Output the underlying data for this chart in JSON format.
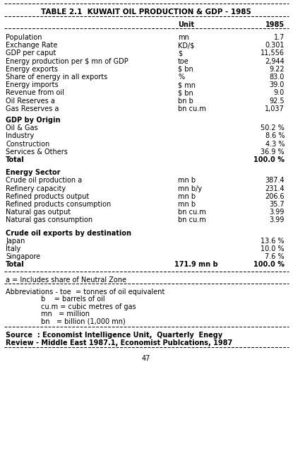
{
  "title": "TABLE 2.1  KUWAIT OIL PRODUCTION & GDP - 1985",
  "bg_color": "#ffffff",
  "text_color": "#000000",
  "page_number": "47",
  "data_rows": [
    [
      "Population",
      "mn",
      "1.7"
    ],
    [
      "Exchange Rate",
      "KD/$",
      "0.301"
    ],
    [
      "GDP per caput",
      "$",
      "11,556"
    ],
    [
      "Energy production per $ mn of GDP",
      "toe",
      "2,944"
    ],
    [
      "Energy exports",
      "$ bn",
      "9.22"
    ],
    [
      "Share of energy in all exports",
      "%",
      "83.0"
    ],
    [
      "Energy imports",
      "$ mn",
      "39.0"
    ],
    [
      "Revenue from oil",
      "$ bn",
      "9.0"
    ],
    [
      "Oil Reserves a",
      "bn b",
      "92.5"
    ],
    [
      "Gas Reserves a",
      "bn cu.m",
      "1,037"
    ]
  ],
  "gdp_heading": "GDP by Origin",
  "gdp_rows": [
    [
      "Oil & Gas",
      "",
      "50.2 %"
    ],
    [
      "Industry",
      "",
      "8.6 %"
    ],
    [
      "Construction",
      "",
      "4.3 %"
    ],
    [
      "Services & Others",
      "",
      "36.9 %"
    ],
    [
      "Total",
      "",
      "100.0 %"
    ]
  ],
  "energy_heading": "Energy Sector",
  "energy_rows": [
    [
      "Crude oil production a",
      "mn b",
      "387.4"
    ],
    [
      "Refinery capacity",
      "mn b/y",
      "231.4"
    ],
    [
      "Refined products output",
      "mn b",
      "206.6"
    ],
    [
      "Refined products consumption",
      "mn b",
      "35.7"
    ],
    [
      "Natural gas output",
      "bn cu.m",
      "3.99"
    ],
    [
      "Natural gas consumption",
      "bn cu.m",
      "3.99"
    ]
  ],
  "exports_heading": "Crude oil exports by destination",
  "exports_rows": [
    [
      "Japan",
      "",
      "13.6 %"
    ],
    [
      "Italy",
      "",
      "10.0 %"
    ],
    [
      "Singapore",
      "",
      "7.6 %"
    ],
    [
      "Total",
      "171.9 mn b",
      "100.0 %"
    ]
  ],
  "footnote": "a = Includes share of Neutral Zone",
  "abbrev_lines": [
    "Abbreviations - toe  = tonnes of oil equivalent",
    "                b    = barrels of oil",
    "                cu.m = cubic metres of gas",
    "                mn   = million",
    "                bn   = billion (1,000 mn)"
  ],
  "source_lines": [
    "Source  : Economist Intelligence Unit,  Quarterly  Enegy",
    "Review - Middle East 1987.1, Economist Publcations, 1987"
  ]
}
